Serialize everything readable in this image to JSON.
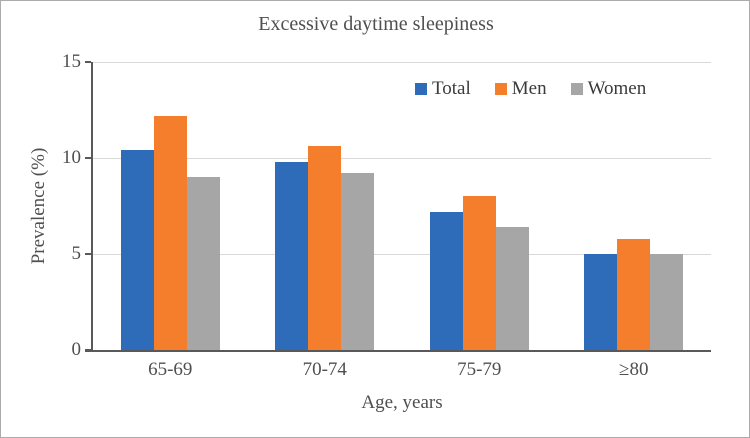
{
  "figure": {
    "border_color": "#ababab",
    "background": "#ffffff",
    "axis_color": "#595959",
    "gridline_color": "#d9d9d9",
    "text_color": "#4f4f4f"
  },
  "chart_data": {
    "type": "bar",
    "title": "Excessive daytime sleepiness",
    "categories": [
      "65-69",
      "70-74",
      "75-79",
      "≥80"
    ],
    "series": [
      {
        "name": "Total",
        "color": "#2E6CBA",
        "values": [
          10.4,
          9.8,
          7.2,
          5.0
        ]
      },
      {
        "name": "Men",
        "color": "#F47E2B",
        "values": [
          12.2,
          10.6,
          8.0,
          5.8
        ]
      },
      {
        "name": "Women",
        "color": "#A6A6A6",
        "values": [
          9.0,
          9.2,
          6.4,
          5.0
        ]
      }
    ],
    "xlabel": "Age, years",
    "ylabel": "Prevalence (%)",
    "ylim": [
      0,
      15
    ],
    "yticks": [
      0,
      5,
      10,
      15
    ],
    "grid": true,
    "legend_position": "top-right-inside"
  }
}
